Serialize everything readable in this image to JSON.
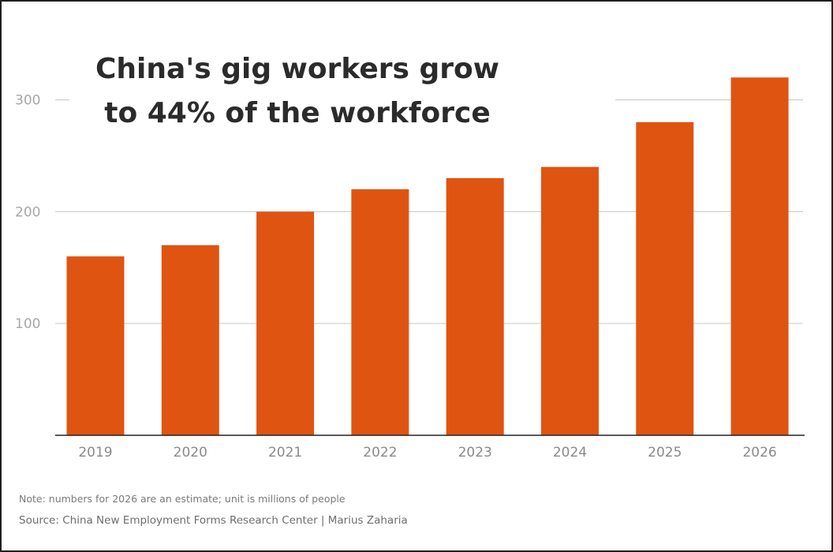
{
  "title_lines": [
    "China's gig workers grow",
    "to 44% of the workforce"
  ],
  "note": "Note: numbers for 2026 are an estimate; unit is millions of people",
  "source": "Source: China New Employment Forms Research Center | Marius Zaharia",
  "colors": {
    "bar": "#e05412",
    "title": "#2b2b2b",
    "grid": "#cfcfcf",
    "tick_label": "#a7a7a7",
    "axis": "#222222"
  },
  "chart_data": {
    "type": "bar",
    "title": "China's gig workers grow to 44% of the workforce",
    "categories": [
      "2019",
      "2020",
      "2021",
      "2022",
      "2023",
      "2024",
      "2025",
      "2026"
    ],
    "values": [
      160,
      170,
      200,
      220,
      230,
      240,
      280,
      320
    ],
    "xlabel": "",
    "ylabel": "",
    "ylim": [
      0,
      300
    ],
    "yticks": [
      100,
      200,
      300
    ],
    "grid": true,
    "legend": "none"
  }
}
